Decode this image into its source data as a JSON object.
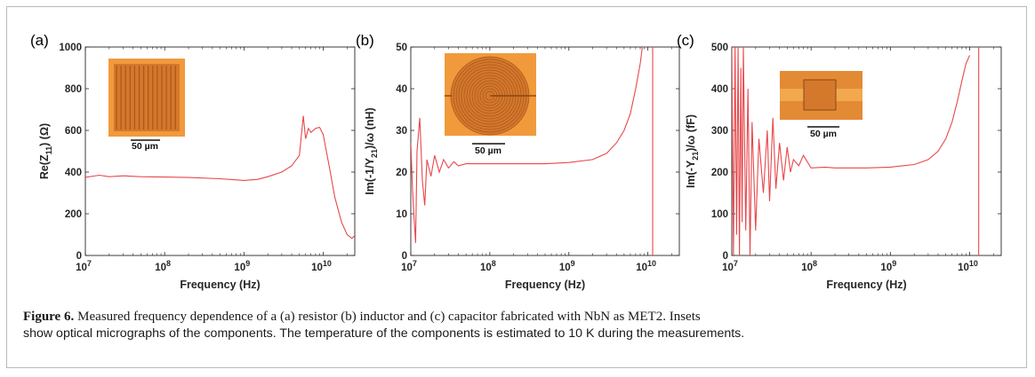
{
  "caption": {
    "label": "Figure 6.",
    "line1": "Measured frequency dependence of a (a) resistor (b)  inductor and  (c) capacitor fabricated with NbN  as MET2.  Insets",
    "line2": "show optical micrographs of the components. The temperature of the components is estimated to 10 K during the measurements."
  },
  "chart_data": [
    {
      "type": "line",
      "panel_label": "(a)",
      "xlabel": "Frequency (Hz)",
      "ylabel": "Re(Z11) (Ω)",
      "xscale": "log",
      "xlim": [
        10000000.0,
        25000000000.0
      ],
      "ylim": [
        0,
        1000
      ],
      "yticks": [
        0,
        200,
        400,
        600,
        800,
        1000
      ],
      "xticks": [
        10000000.0,
        100000000.0,
        1000000000.0,
        10000000000.0
      ],
      "line_color": "#e8474b",
      "inset": {
        "kind": "resistor",
        "scale_label": "50 µm",
        "fill": "#d4782c"
      },
      "series": [
        {
          "x": [
            10000000.0,
            15000000.0,
            20000000.0,
            30000000.0,
            50000000.0,
            100000000.0,
            200000000.0,
            500000000.0,
            1000000000.0,
            1500000000.0,
            2000000000.0,
            3000000000.0,
            4000000000.0,
            5000000000.0,
            5600000000.0,
            6000000000.0,
            6500000000.0,
            7000000000.0,
            8000000000.0,
            9000000000.0,
            10000000000.0,
            12000000000.0,
            14000000000.0,
            17000000000.0,
            20000000000.0,
            23000000000.0,
            25000000000.0
          ],
          "values": [
            375,
            385,
            378,
            382,
            378,
            376,
            374,
            368,
            360,
            365,
            378,
            400,
            430,
            480,
            670,
            560,
            610,
            590,
            610,
            615,
            580,
            420,
            280,
            160,
            100,
            82,
            95
          ]
        }
      ]
    },
    {
      "type": "line",
      "panel_label": "(b)",
      "xlabel": "Frequency (Hz)",
      "ylabel": "Im(-1/Y21)/ω (nH)",
      "xscale": "log",
      "xlim": [
        10000000.0,
        25000000000.0
      ],
      "ylim": [
        0,
        50
      ],
      "yticks": [
        0,
        10,
        20,
        30,
        40,
        50
      ],
      "xticks": [
        10000000.0,
        100000000.0,
        1000000000.0,
        10000000000.0
      ],
      "line_color": "#e8474b",
      "inset": {
        "kind": "inductor",
        "scale_label": "50 µm",
        "fill": "#d4782c"
      },
      "series": [
        {
          "x": [
            10000000.0,
            10500000.0,
            11000000.0,
            11500000.0,
            12000000.0,
            13000000.0,
            14000000.0,
            15000000.0,
            16000000.0,
            18000000.0,
            20000000.0,
            23000000.0,
            26000000.0,
            30000000.0,
            35000000.0,
            40000000.0,
            50000000.0,
            60000000.0,
            80000000.0,
            100000000.0,
            200000000.0,
            500000000.0,
            1000000000.0,
            2000000000.0,
            3000000000.0,
            4000000000.0,
            5000000000.0,
            6000000000.0,
            7000000000.0,
            8000000000.0,
            8500000000.0,
            9000000000.0
          ],
          "values": [
            27,
            16,
            9,
            3,
            25,
            33,
            18,
            12,
            23,
            19,
            24,
            20,
            23,
            21,
            22.5,
            21.5,
            22,
            22,
            22,
            22,
            22,
            22,
            22.3,
            23,
            24.5,
            27,
            30,
            34,
            40,
            46,
            50,
            50
          ]
        }
      ]
    },
    {
      "type": "line",
      "panel_label": "(c)",
      "xlabel": "Frequency (Hz)",
      "ylabel": "Im(-Y21)/ω (fF)",
      "xscale": "log",
      "xlim": [
        10000000.0,
        25000000000.0
      ],
      "ylim": [
        0,
        500
      ],
      "yticks": [
        0,
        100,
        200,
        300,
        400,
        500
      ],
      "xticks": [
        10000000.0,
        100000000.0,
        1000000000.0,
        10000000000.0
      ],
      "line_color": "#e8474b",
      "inset": {
        "kind": "capacitor",
        "scale_label": "50 µm",
        "fill": "#d4782c"
      },
      "series": [
        {
          "x": [
            10000000.0,
            10500000.0,
            11000000.0,
            11500000.0,
            12000000.0,
            12500000.0,
            13000000.0,
            13500000.0,
            14000000.0,
            15000000.0,
            16000000.0,
            17000000.0,
            18000000.0,
            20000000.0,
            22000000.0,
            25000000.0,
            28000000.0,
            30000000.0,
            33000000.0,
            36000000.0,
            40000000.0,
            45000000.0,
            50000000.0,
            55000000.0,
            60000000.0,
            70000000.0,
            80000000.0,
            100000000.0,
            150000000.0,
            200000000.0,
            500000000.0,
            1000000000.0,
            2000000000.0,
            3000000000.0,
            4000000000.0,
            5000000000.0,
            6000000000.0,
            7000000000.0,
            8000000000.0,
            9000000000.0,
            10000000000.0
          ],
          "values": [
            500,
            0,
            500,
            50,
            500,
            0,
            450,
            80,
            500,
            60,
            400,
            0,
            320,
            60,
            280,
            150,
            300,
            130,
            330,
            160,
            270,
            180,
            260,
            200,
            230,
            215,
            240,
            210,
            212,
            210,
            210,
            212,
            218,
            230,
            250,
            280,
            320,
            370,
            420,
            460,
            480
          ]
        }
      ]
    }
  ]
}
